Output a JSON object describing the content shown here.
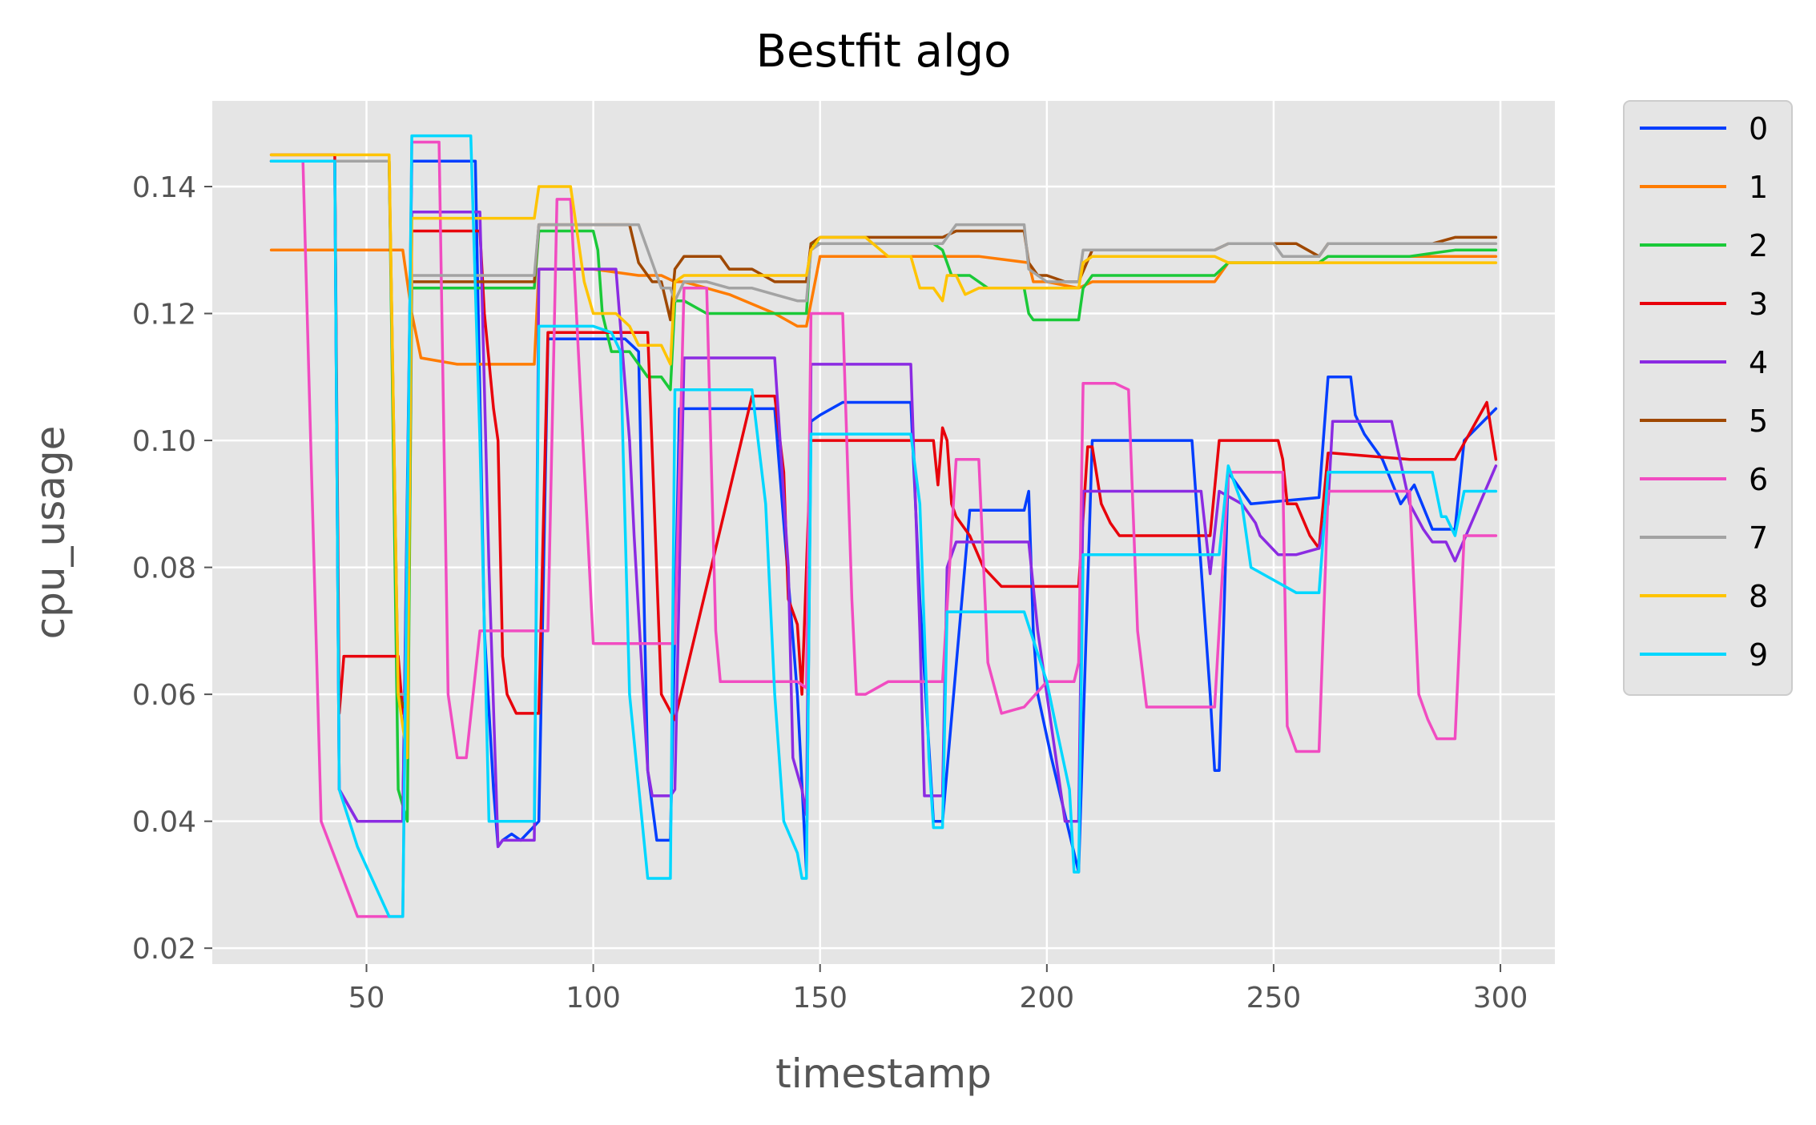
{
  "chart_data": {
    "type": "line",
    "title": "Bestfit algo",
    "xlabel": "timestamp",
    "ylabel": "cpu_usage",
    "xlim": [
      16,
      312
    ],
    "ylim": [
      0.0175,
      0.1535
    ],
    "xticks": [
      50,
      100,
      150,
      200,
      250,
      300
    ],
    "xtick_labels": [
      "50",
      "100",
      "150",
      "200",
      "250",
      "300"
    ],
    "yticks": [
      0.02,
      0.04,
      0.06,
      0.08,
      0.1,
      0.12,
      0.14
    ],
    "ytick_labels": [
      "0.02",
      "0.04",
      "0.06",
      "0.08",
      "0.10",
      "0.12",
      "0.14"
    ],
    "grid": true,
    "style": "ggplot",
    "legend_position": "outside-right-top",
    "background": "#e5e5e5",
    "series": [
      {
        "name": "0",
        "color": "#023eff",
        "x": [
          29,
          43,
          44,
          48,
          55,
          58,
          60,
          74,
          76,
          78,
          79,
          80,
          82,
          84,
          88,
          90,
          100,
          104,
          107,
          110,
          112,
          114,
          117,
          119,
          125,
          140,
          145,
          147,
          148,
          150,
          155,
          170,
          172,
          175,
          177,
          183,
          187,
          195,
          196,
          197,
          198,
          201,
          207,
          210,
          225,
          232,
          234,
          236,
          237,
          238,
          240,
          245,
          260,
          262,
          267,
          268,
          270,
          274,
          278,
          281,
          285,
          290,
          292,
          299
        ],
        "y": [
          0.144,
          0.144,
          0.045,
          0.04,
          0.04,
          0.04,
          0.144,
          0.144,
          0.07,
          0.045,
          0.036,
          0.037,
          0.038,
          0.037,
          0.04,
          0.116,
          0.116,
          0.116,
          0.116,
          0.114,
          0.048,
          0.037,
          0.037,
          0.105,
          0.105,
          0.105,
          0.06,
          0.032,
          0.103,
          0.104,
          0.106,
          0.106,
          0.075,
          0.04,
          0.04,
          0.089,
          0.089,
          0.089,
          0.092,
          0.07,
          0.06,
          0.05,
          0.032,
          0.1,
          0.1,
          0.1,
          0.08,
          0.06,
          0.048,
          0.048,
          0.095,
          0.09,
          0.091,
          0.11,
          0.11,
          0.104,
          0.101,
          0.097,
          0.09,
          0.093,
          0.086,
          0.086,
          0.1,
          0.105
        ]
      },
      {
        "name": "1",
        "color": "#ff7c00",
        "x": [
          29,
          58,
          60,
          62,
          70,
          87,
          88,
          90,
          100,
          110,
          115,
          118,
          120,
          130,
          140,
          145,
          147,
          150,
          155,
          170,
          185,
          196,
          197,
          200,
          207,
          210,
          225,
          237,
          240,
          260,
          262,
          270,
          285,
          290,
          299
        ],
        "y": [
          0.13,
          0.13,
          0.12,
          0.113,
          0.112,
          0.112,
          0.127,
          0.127,
          0.127,
          0.126,
          0.126,
          0.125,
          0.125,
          0.123,
          0.12,
          0.118,
          0.118,
          0.129,
          0.129,
          0.129,
          0.129,
          0.128,
          0.125,
          0.125,
          0.124,
          0.125,
          0.125,
          0.125,
          0.128,
          0.128,
          0.129,
          0.129,
          0.129,
          0.129,
          0.129
        ]
      },
      {
        "name": "2",
        "color": "#1ac938",
        "x": [
          29,
          55,
          57,
          59,
          60,
          75,
          87,
          88,
          90,
          100,
          101,
          102,
          104,
          108,
          112,
          115,
          117,
          118,
          120,
          125,
          140,
          145,
          147,
          148,
          150,
          160,
          170,
          172,
          175,
          177,
          179,
          183,
          187,
          192,
          195,
          196,
          197,
          207,
          208,
          210,
          220,
          237,
          240,
          260,
          262,
          280,
          290,
          299
        ],
        "y": [
          0.144,
          0.144,
          0.045,
          0.04,
          0.124,
          0.124,
          0.124,
          0.133,
          0.133,
          0.133,
          0.13,
          0.12,
          0.114,
          0.114,
          0.11,
          0.11,
          0.108,
          0.122,
          0.122,
          0.12,
          0.12,
          0.12,
          0.12,
          0.131,
          0.131,
          0.131,
          0.131,
          0.131,
          0.131,
          0.13,
          0.126,
          0.126,
          0.124,
          0.124,
          0.124,
          0.12,
          0.119,
          0.119,
          0.124,
          0.126,
          0.126,
          0.126,
          0.128,
          0.128,
          0.129,
          0.129,
          0.13,
          0.13
        ]
      },
      {
        "name": "3",
        "color": "#e8000b",
        "x": [
          29,
          43,
          44,
          45,
          57,
          58,
          59,
          60,
          75,
          76,
          78,
          79,
          80,
          81,
          83,
          88,
          90,
          105,
          108,
          110,
          112,
          115,
          118,
          135,
          140,
          142,
          143,
          145,
          146,
          148,
          150,
          170,
          175,
          176,
          177,
          178,
          179,
          180,
          183,
          186,
          190,
          200,
          207,
          209,
          210,
          212,
          214,
          216,
          220,
          236,
          238,
          240,
          251,
          252,
          253,
          255,
          258,
          260,
          262,
          263,
          280,
          290,
          297,
          299
        ],
        "y": [
          0.145,
          0.145,
          0.057,
          0.066,
          0.066,
          0.057,
          0.06,
          0.133,
          0.133,
          0.12,
          0.105,
          0.1,
          0.066,
          0.06,
          0.057,
          0.057,
          0.117,
          0.117,
          0.117,
          0.117,
          0.117,
          0.06,
          0.056,
          0.107,
          0.107,
          0.095,
          0.075,
          0.071,
          0.06,
          0.1,
          0.1,
          0.1,
          0.1,
          0.093,
          0.102,
          0.1,
          0.09,
          0.088,
          0.085,
          0.08,
          0.077,
          0.077,
          0.077,
          0.099,
          0.099,
          0.09,
          0.087,
          0.085,
          0.085,
          0.085,
          0.1,
          0.1,
          0.1,
          0.097,
          0.09,
          0.09,
          0.085,
          0.083,
          0.098,
          0.098,
          0.097,
          0.097,
          0.106,
          0.097
        ]
      },
      {
        "name": "4",
        "color": "#8b2be2",
        "x": [
          29,
          43,
          44,
          48,
          55,
          58,
          60,
          70,
          75,
          77,
          79,
          80,
          87,
          88,
          90,
          100,
          105,
          108,
          109,
          112,
          113,
          117,
          118,
          120,
          130,
          135,
          140,
          143,
          144,
          146,
          147,
          148,
          150,
          160,
          170,
          172,
          173,
          175,
          177,
          178,
          180,
          185,
          190,
          196,
          198,
          200,
          204,
          207,
          208,
          210,
          220,
          234,
          236,
          238,
          243,
          246,
          247,
          251,
          255,
          260,
          262,
          263,
          270,
          276,
          280,
          283,
          285,
          288,
          290,
          299
        ],
        "y": [
          0.144,
          0.144,
          0.045,
          0.04,
          0.04,
          0.04,
          0.136,
          0.136,
          0.136,
          0.08,
          0.036,
          0.037,
          0.037,
          0.127,
          0.127,
          0.127,
          0.127,
          0.1,
          0.085,
          0.048,
          0.044,
          0.044,
          0.045,
          0.113,
          0.113,
          0.113,
          0.113,
          0.08,
          0.05,
          0.045,
          0.041,
          0.112,
          0.112,
          0.112,
          0.112,
          0.07,
          0.044,
          0.044,
          0.044,
          0.08,
          0.084,
          0.084,
          0.084,
          0.084,
          0.07,
          0.06,
          0.04,
          0.04,
          0.092,
          0.092,
          0.092,
          0.092,
          0.079,
          0.092,
          0.09,
          0.087,
          0.085,
          0.082,
          0.082,
          0.083,
          0.09,
          0.103,
          0.103,
          0.103,
          0.09,
          0.086,
          0.084,
          0.084,
          0.081,
          0.096
        ]
      },
      {
        "name": "5",
        "color": "#9f4800",
        "x": [
          29,
          55,
          57,
          59,
          60,
          87,
          88,
          105,
          108,
          110,
          113,
          115,
          117,
          118,
          120,
          128,
          130,
          135,
          140,
          145,
          147,
          148,
          150,
          160,
          170,
          177,
          180,
          190,
          195,
          196,
          198,
          200,
          204,
          207,
          210,
          220,
          237,
          240,
          255,
          260,
          262,
          270,
          285,
          290,
          299
        ],
        "y": [
          0.144,
          0.144,
          0.06,
          0.057,
          0.125,
          0.125,
          0.134,
          0.134,
          0.134,
          0.128,
          0.125,
          0.125,
          0.119,
          0.127,
          0.129,
          0.129,
          0.127,
          0.127,
          0.125,
          0.125,
          0.125,
          0.131,
          0.132,
          0.132,
          0.132,
          0.132,
          0.133,
          0.133,
          0.133,
          0.128,
          0.126,
          0.126,
          0.125,
          0.125,
          0.13,
          0.13,
          0.13,
          0.131,
          0.131,
          0.129,
          0.131,
          0.131,
          0.131,
          0.132,
          0.132
        ]
      },
      {
        "name": "6",
        "color": "#f14cc1",
        "x": [
          29,
          36,
          40,
          48,
          55,
          58,
          60,
          66,
          68,
          70,
          72,
          75,
          87,
          90,
          92,
          95,
          100,
          105,
          115,
          117,
          118,
          120,
          125,
          127,
          128,
          130,
          140,
          145,
          147,
          148,
          150,
          155,
          157,
          158,
          160,
          165,
          175,
          177,
          180,
          185,
          187,
          190,
          195,
          200,
          205,
          206,
          207,
          208,
          215,
          218,
          220,
          222,
          225,
          237,
          240,
          250,
          252,
          253,
          255,
          260,
          262,
          270,
          280,
          282,
          284,
          286,
          290,
          292,
          299
        ],
        "y": [
          0.144,
          0.144,
          0.04,
          0.025,
          0.025,
          0.025,
          0.147,
          0.147,
          0.06,
          0.05,
          0.05,
          0.07,
          0.07,
          0.07,
          0.138,
          0.138,
          0.068,
          0.068,
          0.068,
          0.068,
          0.068,
          0.124,
          0.124,
          0.07,
          0.062,
          0.062,
          0.062,
          0.062,
          0.061,
          0.12,
          0.12,
          0.12,
          0.075,
          0.06,
          0.06,
          0.062,
          0.062,
          0.062,
          0.097,
          0.097,
          0.065,
          0.057,
          0.058,
          0.062,
          0.062,
          0.062,
          0.065,
          0.109,
          0.109,
          0.108,
          0.07,
          0.058,
          0.058,
          0.058,
          0.095,
          0.095,
          0.095,
          0.055,
          0.051,
          0.051,
          0.092,
          0.092,
          0.092,
          0.06,
          0.056,
          0.053,
          0.053,
          0.085,
          0.085
        ]
      },
      {
        "name": "7",
        "color": "#a3a3a3",
        "x": [
          29,
          55,
          57,
          59,
          60,
          87,
          88,
          105,
          108,
          110,
          115,
          117,
          118,
          120,
          125,
          130,
          135,
          140,
          145,
          147,
          148,
          150,
          155,
          170,
          175,
          177,
          180,
          190,
          195,
          196,
          198,
          200,
          204,
          207,
          208,
          210,
          237,
          240,
          250,
          252,
          260,
          262,
          280,
          290,
          299
        ],
        "y": [
          0.144,
          0.144,
          0.06,
          0.06,
          0.126,
          0.126,
          0.134,
          0.134,
          0.134,
          0.134,
          0.124,
          0.124,
          0.122,
          0.125,
          0.125,
          0.124,
          0.124,
          0.123,
          0.122,
          0.122,
          0.13,
          0.131,
          0.131,
          0.131,
          0.131,
          0.131,
          0.134,
          0.134,
          0.134,
          0.127,
          0.126,
          0.125,
          0.125,
          0.125,
          0.13,
          0.13,
          0.13,
          0.131,
          0.131,
          0.129,
          0.129,
          0.131,
          0.131,
          0.131,
          0.131
        ]
      },
      {
        "name": "8",
        "color": "#ffc400",
        "x": [
          29,
          55,
          57,
          59,
          60,
          70,
          87,
          88,
          95,
          97,
          98,
          100,
          105,
          108,
          110,
          113,
          115,
          117,
          118,
          120,
          125,
          130,
          140,
          145,
          147,
          148,
          150,
          155,
          160,
          165,
          168,
          170,
          172,
          175,
          177,
          178,
          180,
          182,
          185,
          190,
          195,
          200,
          207,
          208,
          210,
          230,
          237,
          240,
          255,
          260,
          262,
          285,
          290,
          299
        ],
        "y": [
          0.145,
          0.145,
          0.06,
          0.05,
          0.135,
          0.135,
          0.135,
          0.14,
          0.14,
          0.13,
          0.125,
          0.12,
          0.12,
          0.118,
          0.115,
          0.115,
          0.115,
          0.112,
          0.125,
          0.126,
          0.126,
          0.126,
          0.126,
          0.126,
          0.126,
          0.13,
          0.132,
          0.132,
          0.132,
          0.129,
          0.129,
          0.129,
          0.124,
          0.124,
          0.122,
          0.126,
          0.126,
          0.123,
          0.124,
          0.124,
          0.124,
          0.124,
          0.124,
          0.128,
          0.129,
          0.129,
          0.129,
          0.128,
          0.128,
          0.128,
          0.128,
          0.128,
          0.128,
          0.128
        ]
      },
      {
        "name": "9",
        "color": "#00d7ff",
        "x": [
          29,
          43,
          44,
          48,
          55,
          58,
          60,
          66,
          73,
          75,
          77,
          78,
          80,
          87,
          88,
          90,
          100,
          104,
          106,
          108,
          112,
          115,
          117,
          118,
          120,
          130,
          135,
          138,
          140,
          142,
          145,
          146,
          147,
          148,
          150,
          155,
          170,
          172,
          174,
          175,
          177,
          178,
          180,
          185,
          195,
          200,
          202,
          205,
          206,
          207,
          208,
          210,
          225,
          237,
          238,
          240,
          243,
          245,
          250,
          255,
          258,
          260,
          262,
          270,
          285,
          287,
          288,
          290,
          292,
          299
        ],
        "y": [
          0.144,
          0.144,
          0.045,
          0.036,
          0.025,
          0.025,
          0.148,
          0.148,
          0.148,
          0.1,
          0.04,
          0.04,
          0.04,
          0.04,
          0.118,
          0.118,
          0.118,
          0.117,
          0.114,
          0.06,
          0.031,
          0.031,
          0.031,
          0.108,
          0.108,
          0.108,
          0.108,
          0.09,
          0.06,
          0.04,
          0.035,
          0.031,
          0.031,
          0.101,
          0.101,
          0.101,
          0.101,
          0.09,
          0.05,
          0.039,
          0.039,
          0.073,
          0.073,
          0.073,
          0.073,
          0.062,
          0.055,
          0.045,
          0.032,
          0.032,
          0.082,
          0.082,
          0.082,
          0.082,
          0.082,
          0.096,
          0.09,
          0.08,
          0.078,
          0.076,
          0.076,
          0.076,
          0.095,
          0.095,
          0.095,
          0.088,
          0.088,
          0.085,
          0.092,
          0.092
        ]
      }
    ]
  }
}
